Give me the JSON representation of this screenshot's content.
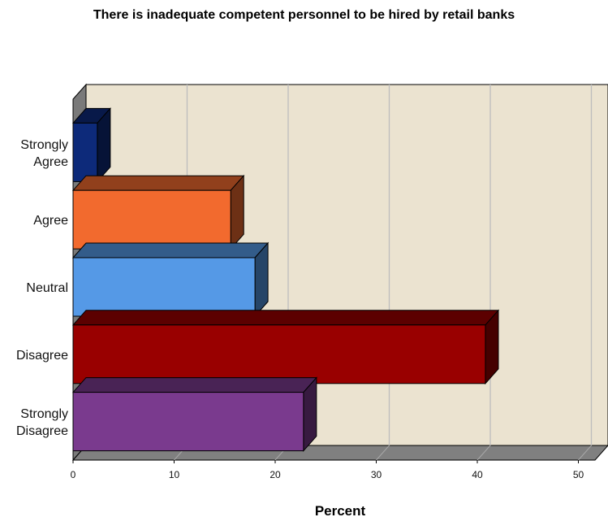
{
  "chart_data": {
    "type": "bar",
    "orientation": "horizontal",
    "title": "There is inadequate competent personnel to be hired by retail banks",
    "xlabel": "Percent",
    "ylabel": "",
    "xlim": [
      0,
      52
    ],
    "x_ticks": [
      0,
      10,
      20,
      30,
      40,
      50
    ],
    "categories": [
      [
        "Strongly",
        "Agree"
      ],
      [
        "Agree"
      ],
      [
        "Neutral"
      ],
      [
        "Disagree"
      ],
      [
        "Strongly",
        "Disagree"
      ]
    ],
    "values": [
      2.4,
      15.6,
      18.0,
      40.8,
      22.8
    ],
    "colors": [
      "#0d2a7a",
      "#f26a2e",
      "#5599e6",
      "#990000",
      "#7a3a8e"
    ],
    "background_color": "#ebe3d0",
    "grid": true,
    "style": "3d"
  }
}
